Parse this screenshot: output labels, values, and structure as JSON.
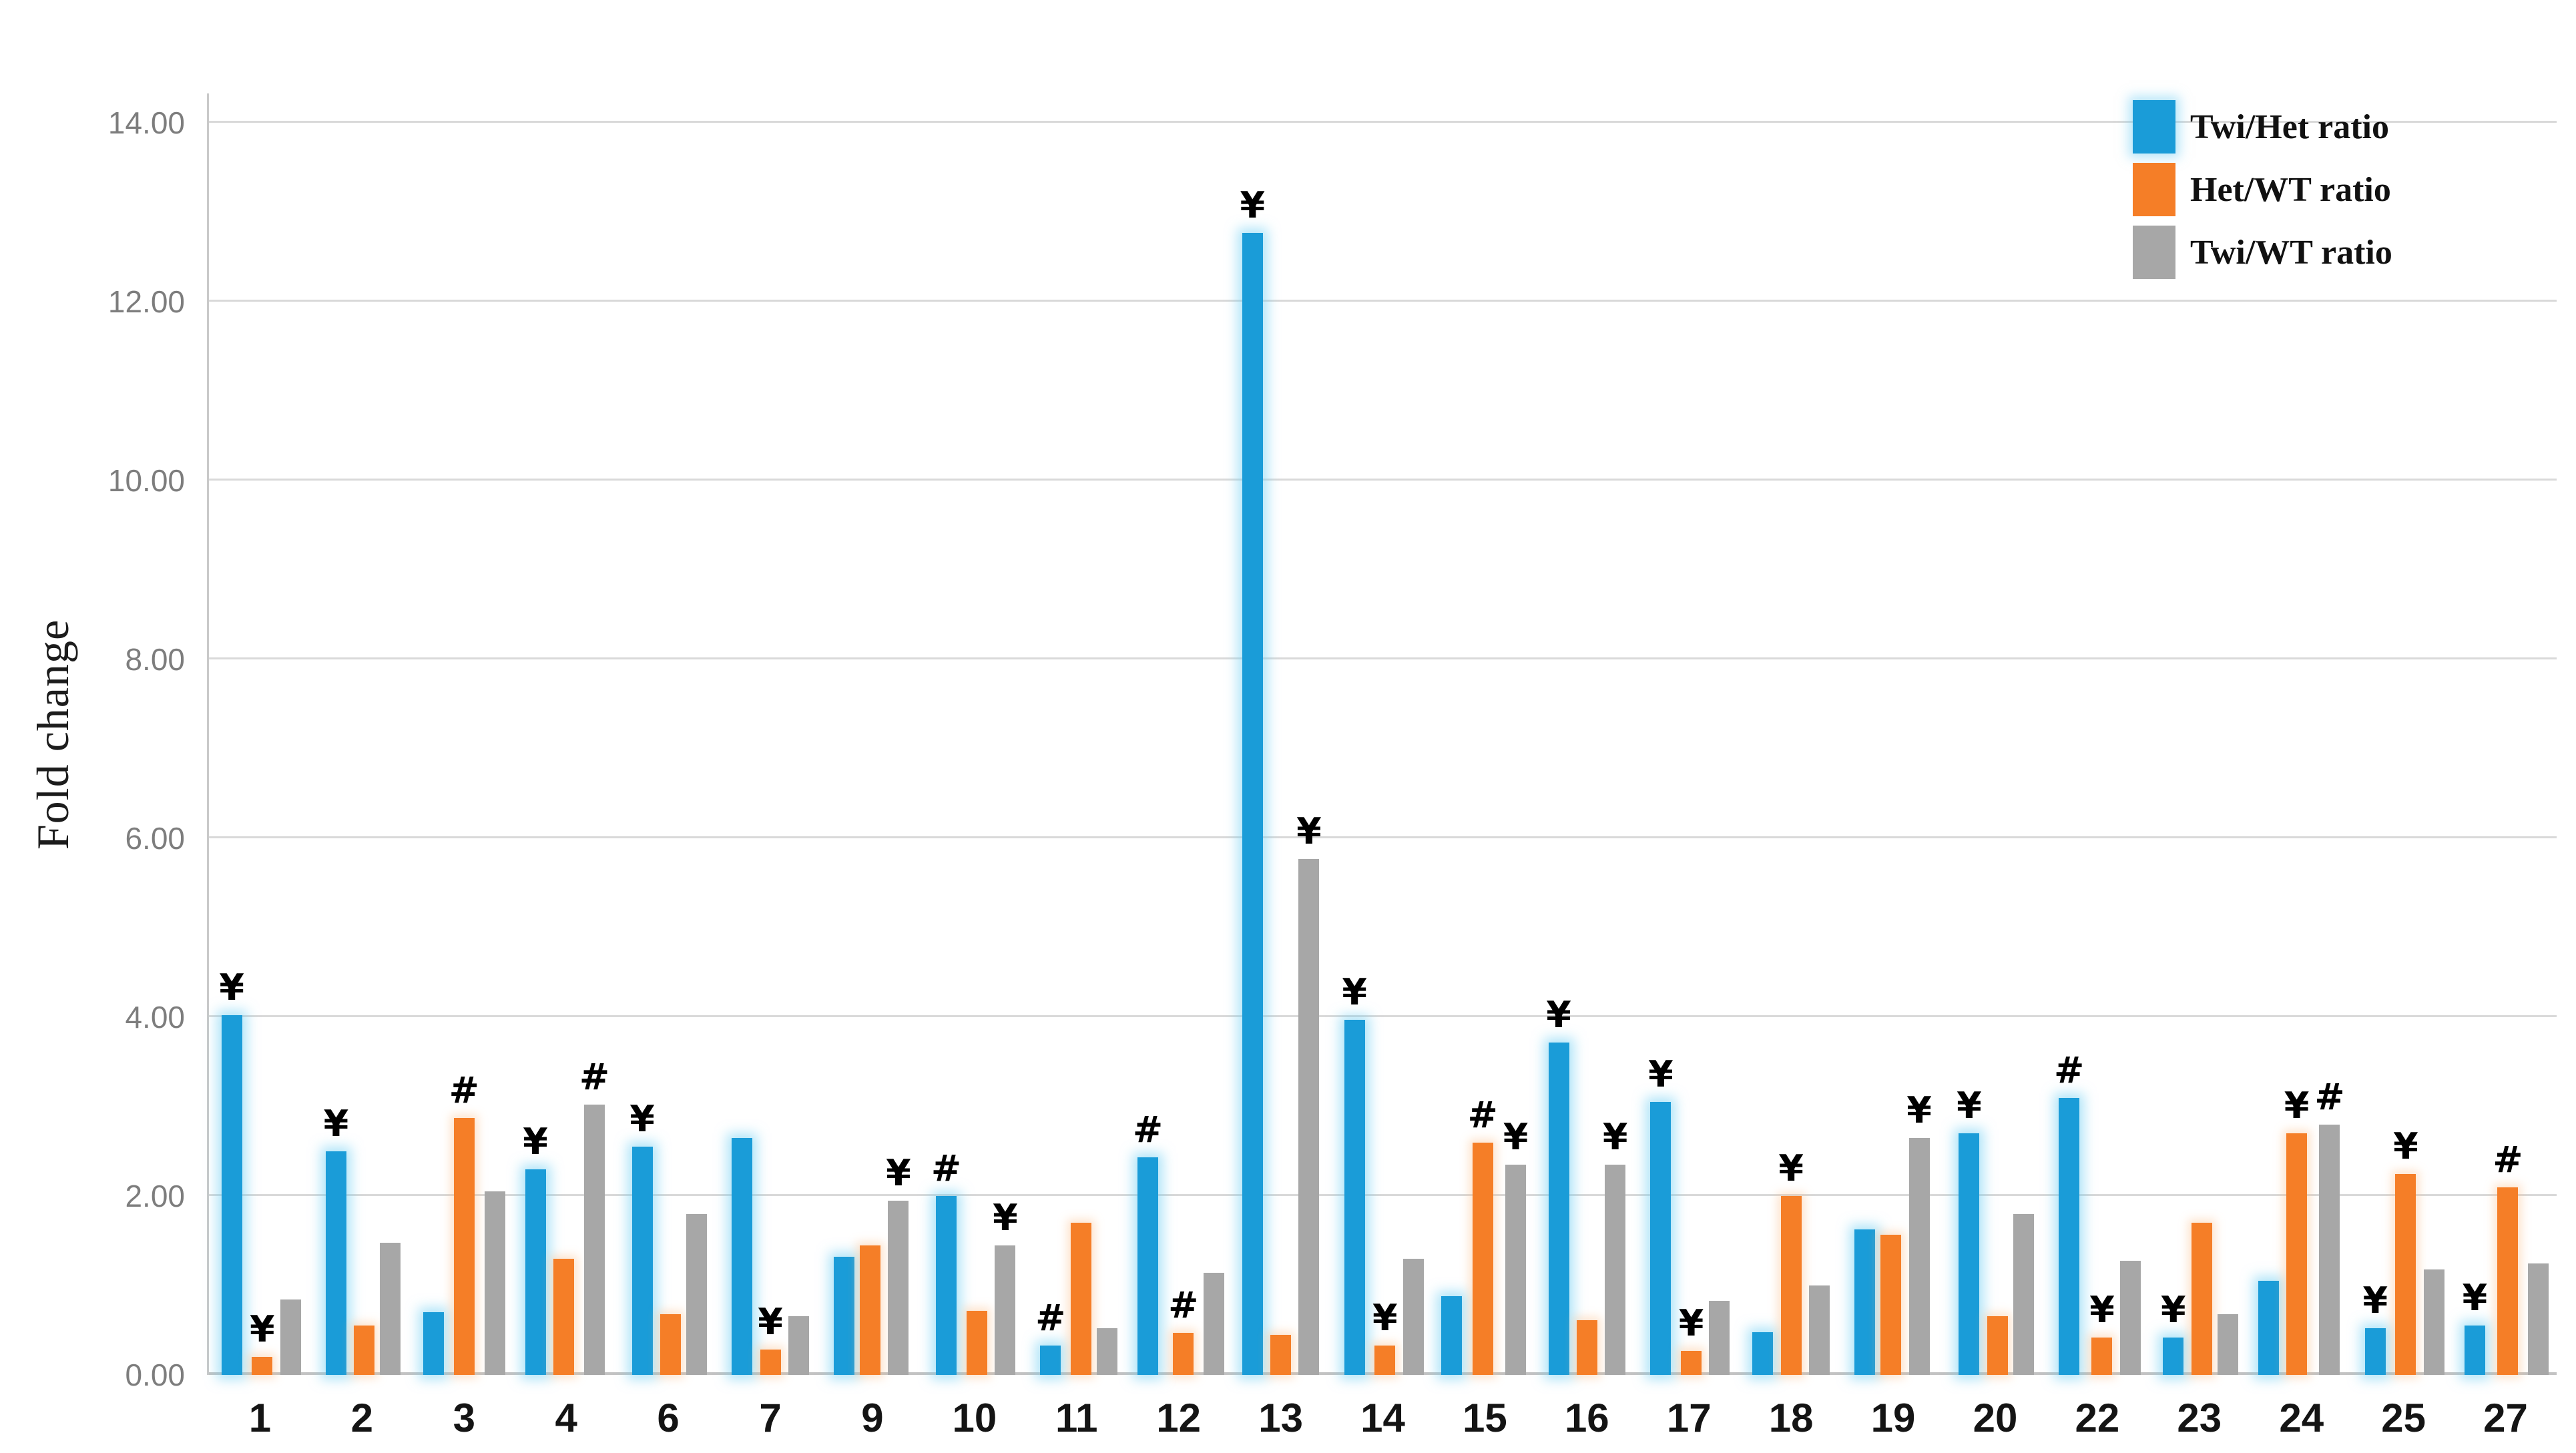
{
  "chart_data": {
    "type": "bar",
    "title": "",
    "ylabel": "Fold change",
    "xlabel": "",
    "ymax": 14.33,
    "grid": "horizontal",
    "legend_position": "top-right",
    "annotation_symbols": [
      "¥",
      "#"
    ],
    "yticks": [
      {
        "value": 0,
        "label": "0.00"
      },
      {
        "value": 2,
        "label": "2.00"
      },
      {
        "value": 4,
        "label": "4.00"
      },
      {
        "value": 6,
        "label": "6.00"
      },
      {
        "value": 8,
        "label": "8.00"
      },
      {
        "value": 10,
        "label": "10.00"
      },
      {
        "value": 12,
        "label": "12.00"
      },
      {
        "value": 14,
        "label": "14.00"
      }
    ],
    "categories": [
      "1",
      "2",
      "3",
      "4",
      "6",
      "7",
      "9",
      "10",
      "11",
      "12",
      "13",
      "14",
      "15",
      "16",
      "17",
      "18",
      "19",
      "20",
      "22",
      "23",
      "24",
      "25",
      "27"
    ],
    "series": [
      {
        "name": "Twi/Het ratio",
        "color": "#1A9CD8",
        "values": [
          4.02,
          2.5,
          0.7,
          2.3,
          2.55,
          2.65,
          1.32,
          2.0,
          0.33,
          2.43,
          12.77,
          3.97,
          0.88,
          3.72,
          3.05,
          0.48,
          1.63,
          2.7,
          3.1,
          0.42,
          1.05,
          0.52,
          0.55
        ],
        "annotations": [
          "¥",
          "¥",
          "",
          "¥",
          "¥",
          "",
          "",
          "#",
          "#",
          "#",
          "¥",
          "¥",
          "",
          "¥",
          "¥",
          "",
          "",
          "¥",
          "#",
          "¥",
          "",
          "¥",
          "¥"
        ]
      },
      {
        "name": "Het/WT ratio",
        "color": "#F57E27",
        "values": [
          0.2,
          0.55,
          2.87,
          1.3,
          0.68,
          0.28,
          1.45,
          0.72,
          1.7,
          0.47,
          0.45,
          0.33,
          2.6,
          0.61,
          0.27,
          2.0,
          1.57,
          0.66,
          0.42,
          1.7,
          2.7,
          2.25,
          2.1
        ],
        "annotations": [
          "¥",
          "",
          "#",
          "",
          "",
          "¥",
          "",
          "",
          "",
          "#",
          "",
          "¥",
          "#",
          "",
          "¥",
          "¥",
          "",
          "",
          "¥",
          "",
          "¥",
          "¥",
          "#"
        ]
      },
      {
        "name": "Twi/WT ratio",
        "color": "#A7A7A7",
        "values": [
          0.84,
          1.48,
          2.05,
          3.02,
          1.8,
          0.66,
          1.95,
          1.45,
          0.52,
          1.14,
          5.77,
          1.3,
          2.35,
          2.35,
          0.83,
          1.0,
          2.65,
          1.8,
          1.28,
          0.68,
          2.8,
          1.18,
          1.25
        ],
        "annotations": [
          "",
          "",
          "",
          "#",
          "",
          "",
          "¥",
          "¥",
          "",
          "",
          "¥",
          "",
          "¥",
          "¥",
          "",
          "",
          "¥",
          "",
          "",
          "",
          "#",
          "",
          ""
        ]
      }
    ]
  }
}
